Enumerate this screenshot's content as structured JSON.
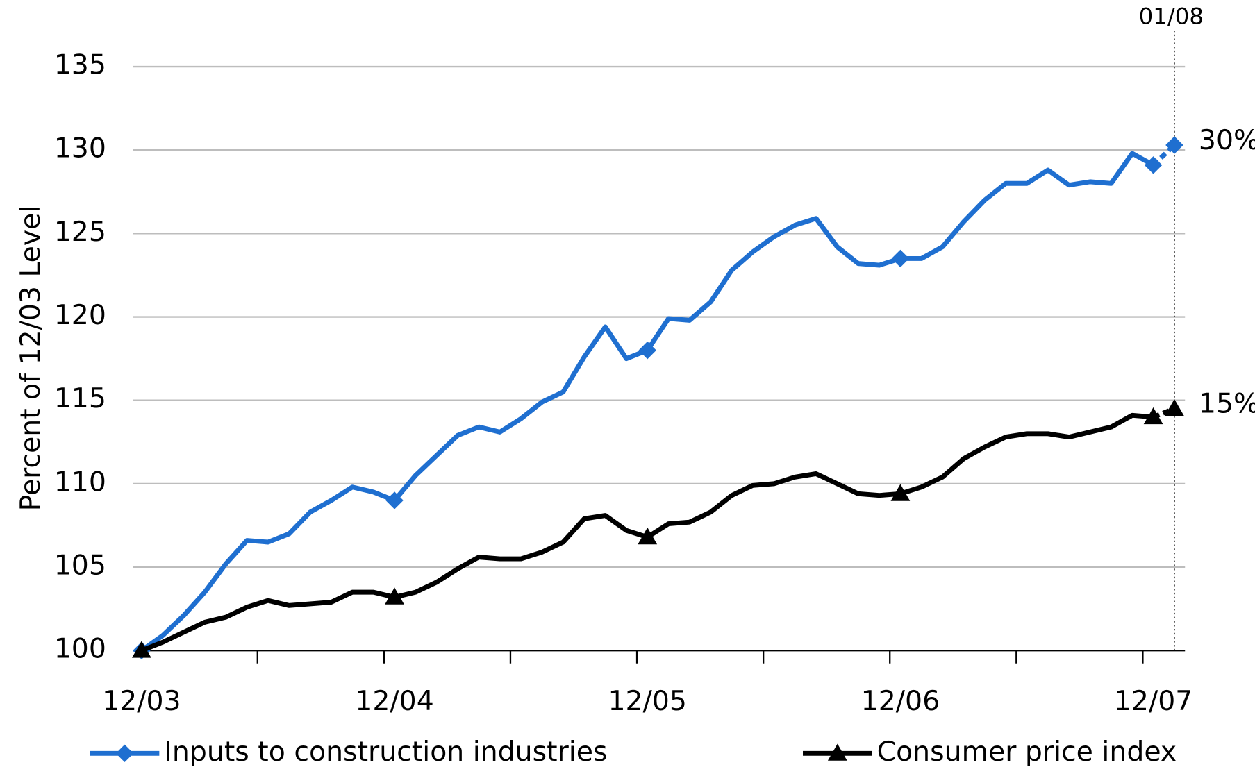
{
  "chart_data": {
    "type": "line",
    "y_label": "Percent of 12/03 Level",
    "categories": [
      "12/03",
      null,
      null,
      null,
      null,
      null,
      null,
      null,
      null,
      null,
      null,
      null,
      "12/04",
      null,
      null,
      null,
      null,
      null,
      null,
      null,
      null,
      null,
      null,
      null,
      "12/05",
      null,
      null,
      null,
      null,
      null,
      null,
      null,
      null,
      null,
      null,
      null,
      "12/06",
      null,
      null,
      null,
      null,
      null,
      null,
      null,
      null,
      null,
      null,
      null,
      "12/07",
      "01/08"
    ],
    "series": [
      {
        "name": "Inputs to construction industries",
        "color": "#1f6fd0",
        "marker": "diamond",
        "end_label": "30%",
        "values": [
          100,
          100.9,
          102.1,
          103.5,
          105.2,
          106.6,
          106.5,
          107.0,
          108.3,
          109.0,
          109.8,
          109.5,
          109.0,
          110.5,
          111.7,
          112.9,
          113.4,
          113.1,
          113.9,
          114.9,
          115.5,
          117.6,
          119.4,
          117.5,
          118.0,
          119.9,
          119.8,
          120.9,
          122.8,
          123.9,
          124.8,
          125.5,
          125.9,
          124.2,
          123.2,
          123.1,
          123.5,
          123.5,
          124.2,
          125.7,
          127.0,
          128.0,
          128.0,
          128.8,
          127.9,
          128.1,
          128.0,
          129.8,
          129.1,
          130.3
        ]
      },
      {
        "name": "Consumer price index",
        "color": "#000000",
        "marker": "triangle",
        "end_label": "15%",
        "values": [
          100,
          100.5,
          101.1,
          101.7,
          102.0,
          102.6,
          103.0,
          102.7,
          102.8,
          102.9,
          103.5,
          103.5,
          103.2,
          103.5,
          104.1,
          104.9,
          105.6,
          105.5,
          105.5,
          105.9,
          106.5,
          107.9,
          108.1,
          107.2,
          106.8,
          107.6,
          107.7,
          108.3,
          109.3,
          109.9,
          110.0,
          110.4,
          110.6,
          110.0,
          109.4,
          109.3,
          109.4,
          109.8,
          110.4,
          111.5,
          112.2,
          112.8,
          113.0,
          113.0,
          112.8,
          113.1,
          113.4,
          114.1,
          114.0,
          114.5
        ]
      }
    ],
    "ylim": [
      100,
      135
    ],
    "yticks": [
      100,
      105,
      110,
      115,
      120,
      125,
      130,
      135
    ],
    "grid": true
  }
}
